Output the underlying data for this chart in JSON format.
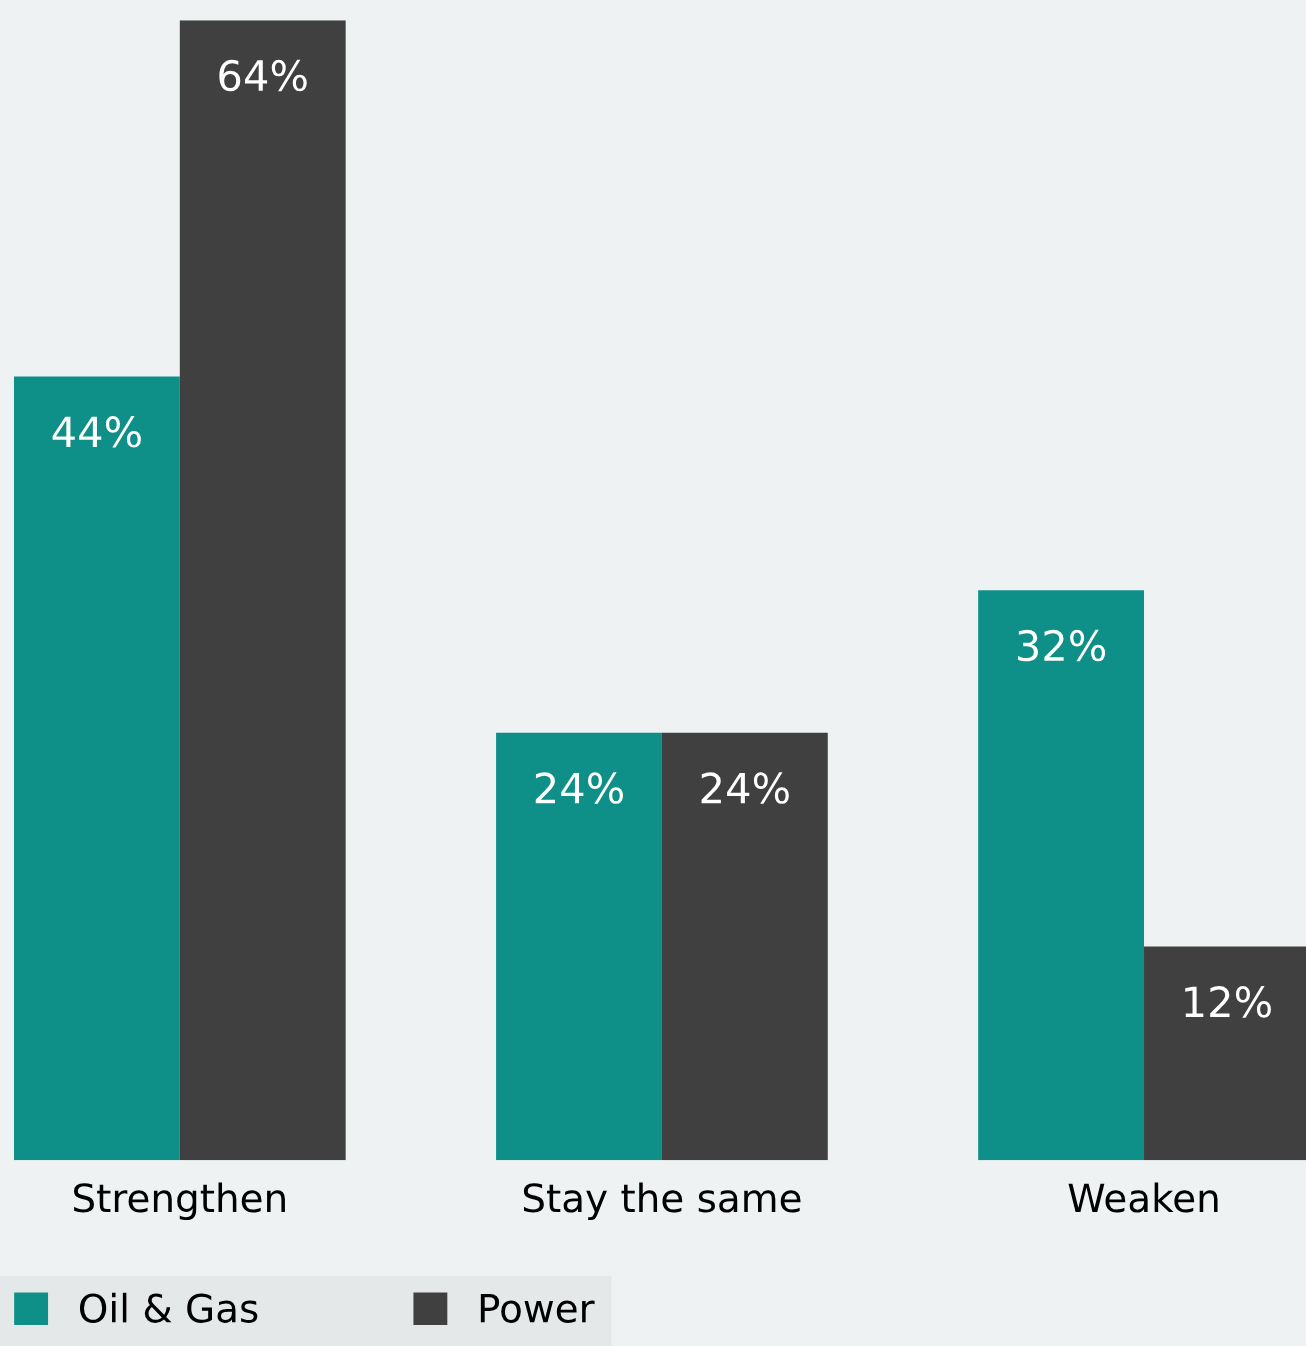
{
  "chart_data": {
    "type": "bar",
    "categories": [
      "Strengthen",
      "Stay the same",
      "Weaken"
    ],
    "series": [
      {
        "name": "Oil & Gas",
        "color": "#0e8f87",
        "values": [
          44,
          24,
          32
        ],
        "value_labels": [
          "44%",
          "24%",
          "32%"
        ]
      },
      {
        "name": "Power",
        "color": "#404040",
        "values": [
          64,
          24,
          12
        ],
        "value_labels": [
          "64%",
          "24%",
          "12%"
        ]
      }
    ],
    "legend": "bottom left",
    "grid": false
  }
}
